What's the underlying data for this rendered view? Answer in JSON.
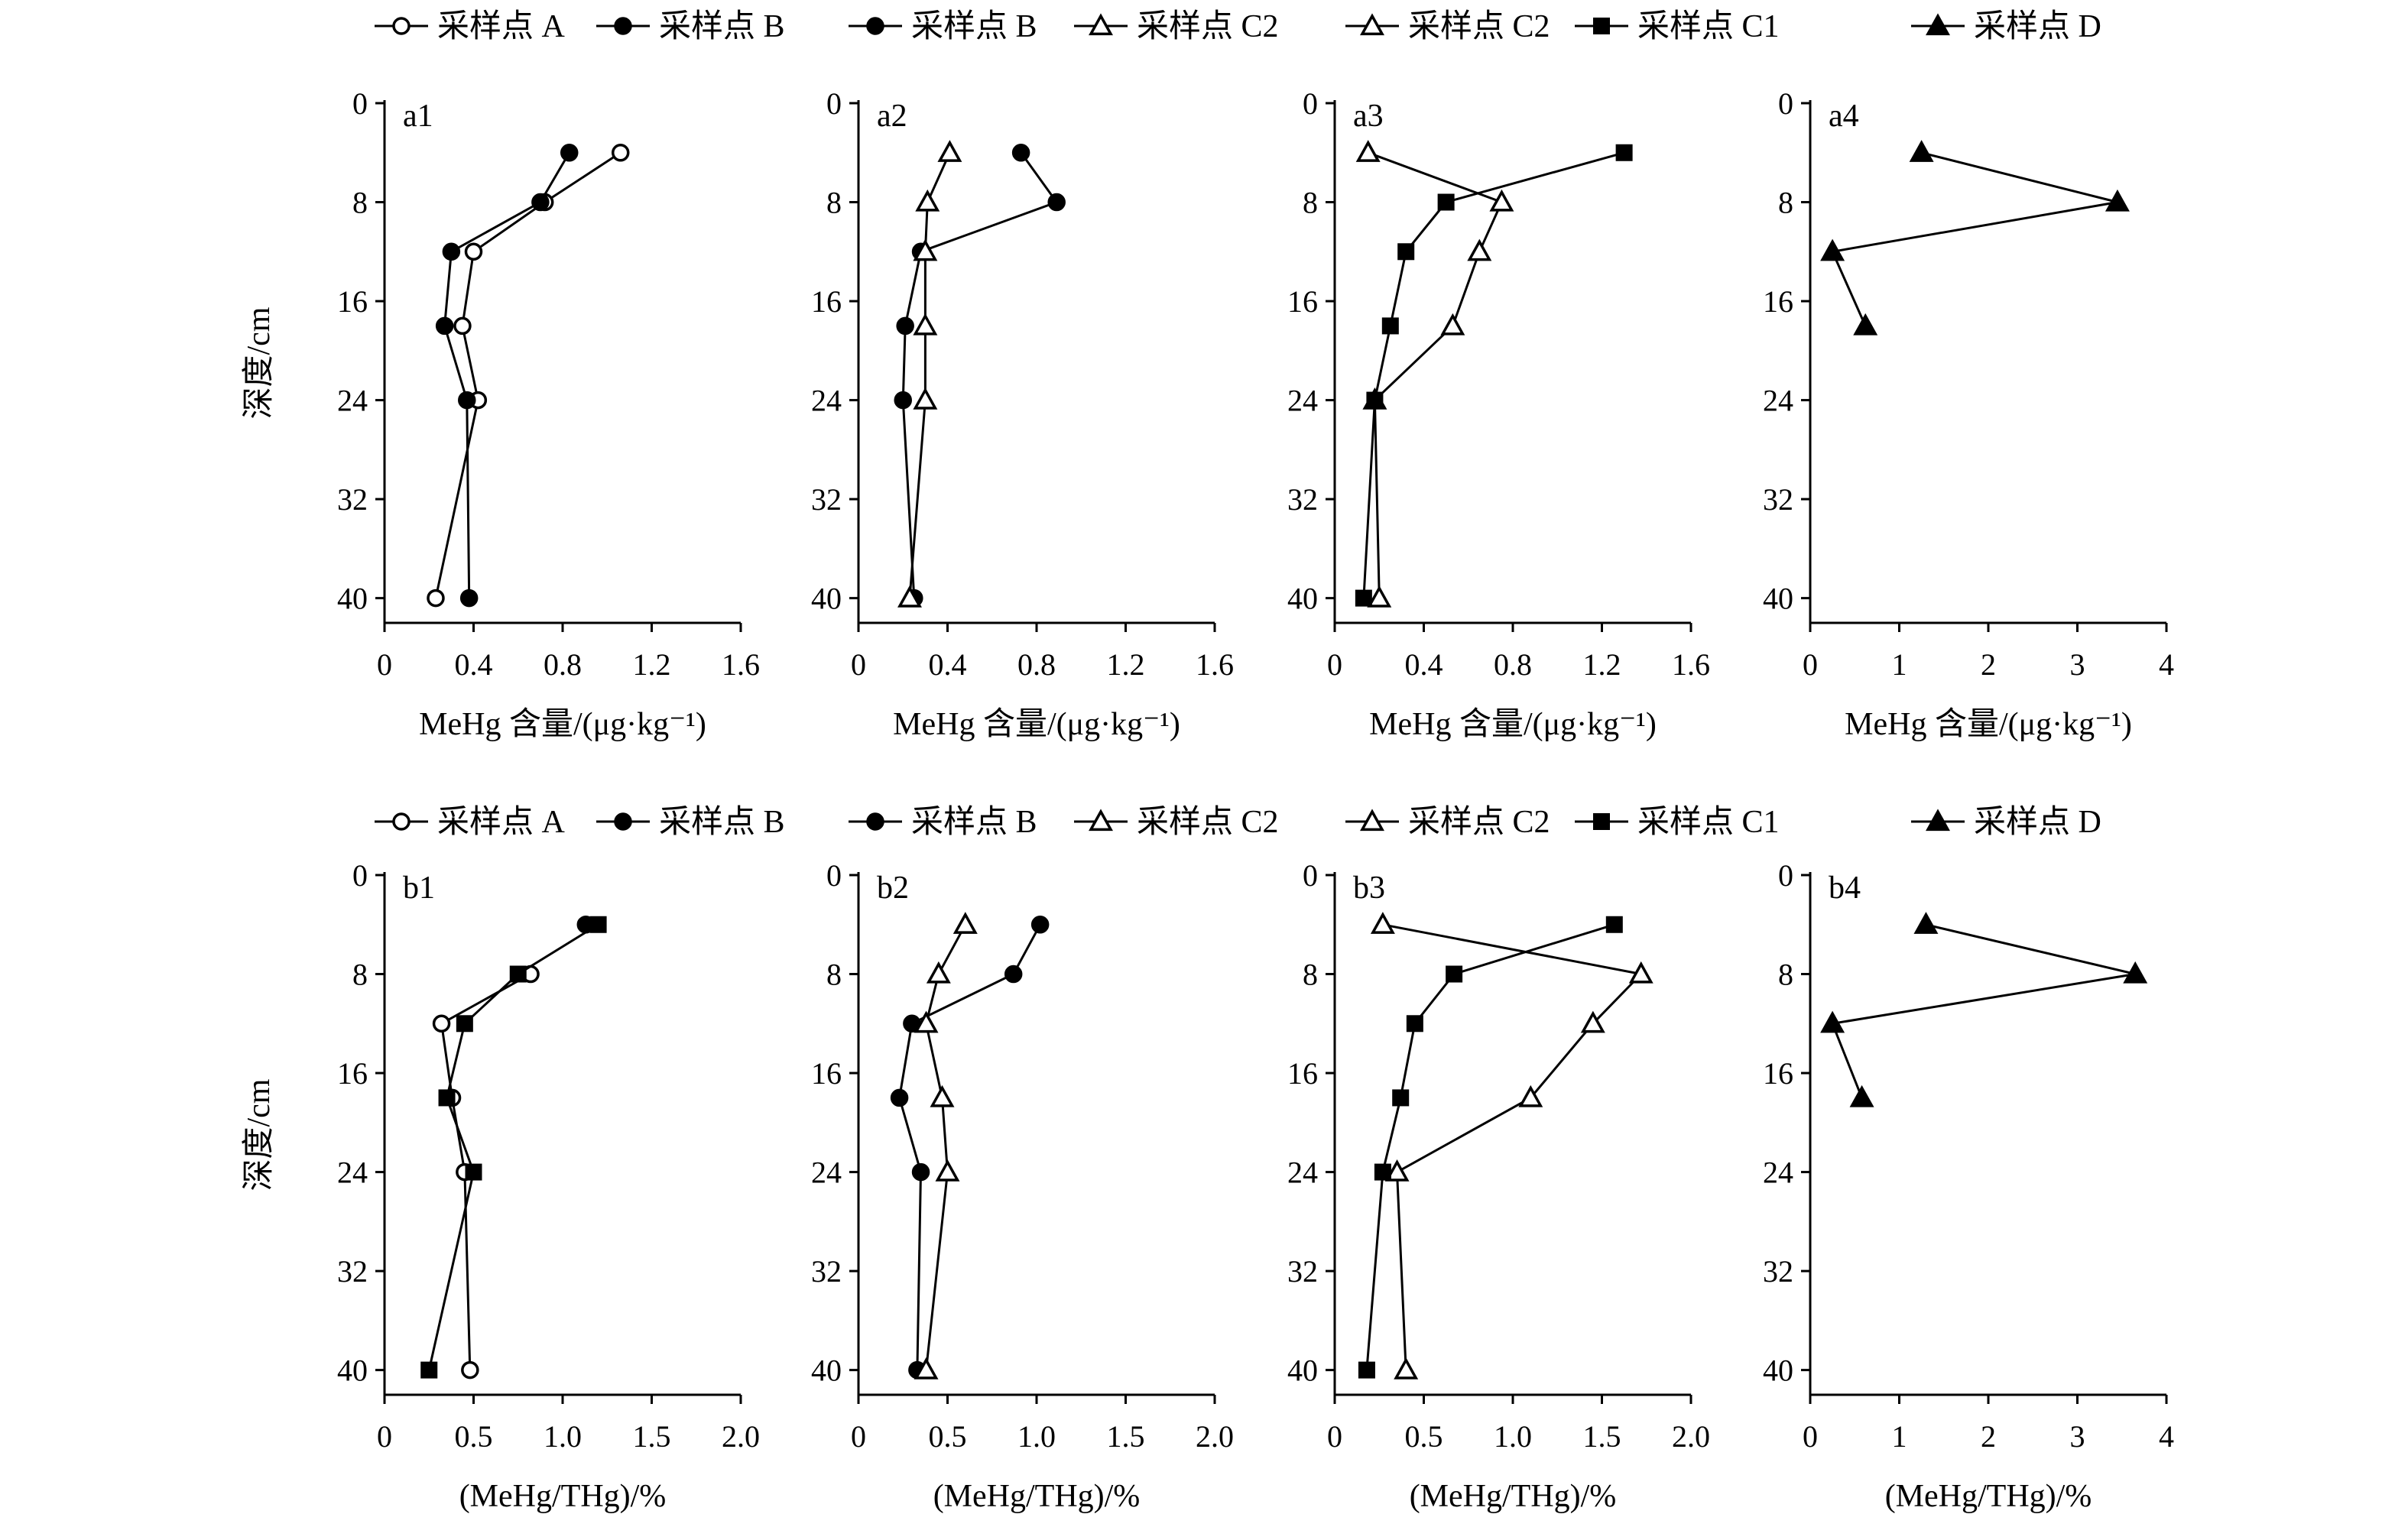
{
  "figure": {
    "ylabel": "深度/cm",
    "y_ticks": [
      0,
      8,
      16,
      24,
      32,
      40
    ]
  },
  "legend": {
    "entries": [
      {
        "label": "采样点 A",
        "marker": "circle-open"
      },
      {
        "label": "采样点 B",
        "marker": "circle-filled"
      },
      {
        "label": "采样点 B",
        "marker": "circle-filled"
      },
      {
        "label": "采样点 C2",
        "marker": "triangle-open"
      },
      {
        "label": "采样点 C2",
        "marker": "triangle-open"
      },
      {
        "label": "采样点 C1",
        "marker": "square-filled"
      },
      {
        "label": "采样点 D",
        "marker": "triangle-filled"
      }
    ]
  },
  "chart_data": [
    {
      "type": "line",
      "panel_label": "a1",
      "xlabel": "MeHg 含量/(μg·kg⁻¹)",
      "xlim": [
        0,
        1.6
      ],
      "x_ticks": [
        "0",
        "0.4",
        "0.8",
        "1.2",
        "1.6"
      ],
      "ylabel": "深度/cm",
      "ylim": [
        40,
        0
      ],
      "y_ticks": [
        0,
        8,
        16,
        24,
        32,
        40
      ],
      "series": [
        {
          "marker": "circle-open",
          "points": [
            {
              "x": 1.06,
              "y": 4
            },
            {
              "x": 0.72,
              "y": 8
            },
            {
              "x": 0.4,
              "y": 12
            },
            {
              "x": 0.35,
              "y": 18
            },
            {
              "x": 0.42,
              "y": 24
            },
            {
              "x": 0.23,
              "y": 40
            }
          ]
        },
        {
          "marker": "circle-filled",
          "points": [
            {
              "x": 0.83,
              "y": 4
            },
            {
              "x": 0.7,
              "y": 8
            },
            {
              "x": 0.3,
              "y": 12
            },
            {
              "x": 0.27,
              "y": 18
            },
            {
              "x": 0.37,
              "y": 24
            },
            {
              "x": 0.38,
              "y": 40
            }
          ]
        }
      ]
    },
    {
      "type": "line",
      "panel_label": "a2",
      "xlabel": "MeHg 含量/(μg·kg⁻¹)",
      "xlim": [
        0,
        1.6
      ],
      "x_ticks": [
        "0",
        "0.4",
        "0.8",
        "1.2",
        "1.6"
      ],
      "ylabel": "深度/cm",
      "ylim": [
        40,
        0
      ],
      "y_ticks": [
        0,
        8,
        16,
        24,
        32,
        40
      ],
      "series": [
        {
          "marker": "circle-filled",
          "points": [
            {
              "x": 0.73,
              "y": 4
            },
            {
              "x": 0.89,
              "y": 8
            },
            {
              "x": 0.28,
              "y": 12
            },
            {
              "x": 0.21,
              "y": 18
            },
            {
              "x": 0.2,
              "y": 24
            },
            {
              "x": 0.25,
              "y": 40
            }
          ]
        },
        {
          "marker": "triangle-open",
          "points": [
            {
              "x": 0.41,
              "y": 4
            },
            {
              "x": 0.31,
              "y": 8
            },
            {
              "x": 0.3,
              "y": 12
            },
            {
              "x": 0.3,
              "y": 18
            },
            {
              "x": 0.3,
              "y": 24
            },
            {
              "x": 0.23,
              "y": 40
            }
          ]
        }
      ]
    },
    {
      "type": "line",
      "panel_label": "a3",
      "xlabel": "MeHg 含量/(μg·kg⁻¹)",
      "xlim": [
        0,
        1.6
      ],
      "x_ticks": [
        "0",
        "0.4",
        "0.8",
        "1.2",
        "1.6"
      ],
      "ylabel": "深度/cm",
      "ylim": [
        40,
        0
      ],
      "y_ticks": [
        0,
        8,
        16,
        24,
        32,
        40
      ],
      "series": [
        {
          "marker": "triangle-open",
          "points": [
            {
              "x": 0.15,
              "y": 4
            },
            {
              "x": 0.75,
              "y": 8
            },
            {
              "x": 0.65,
              "y": 12
            },
            {
              "x": 0.53,
              "y": 18
            },
            {
              "x": 0.18,
              "y": 24
            },
            {
              "x": 0.2,
              "y": 40
            }
          ]
        },
        {
          "marker": "square-filled",
          "points": [
            {
              "x": 1.3,
              "y": 4
            },
            {
              "x": 0.5,
              "y": 8
            },
            {
              "x": 0.32,
              "y": 12
            },
            {
              "x": 0.25,
              "y": 18
            },
            {
              "x": 0.18,
              "y": 24
            },
            {
              "x": 0.13,
              "y": 40
            }
          ]
        }
      ]
    },
    {
      "type": "line",
      "panel_label": "a4",
      "xlabel": "MeHg 含量/(μg·kg⁻¹)",
      "xlim": [
        0,
        4
      ],
      "x_ticks": [
        "0",
        "1",
        "2",
        "3",
        "4"
      ],
      "ylabel": "深度/cm",
      "ylim": [
        40,
        0
      ],
      "y_ticks": [
        0,
        8,
        16,
        24,
        32,
        40
      ],
      "series": [
        {
          "marker": "triangle-filled",
          "points": [
            {
              "x": 1.25,
              "y": 4
            },
            {
              "x": 3.45,
              "y": 8
            },
            {
              "x": 0.25,
              "y": 12
            },
            {
              "x": 0.62,
              "y": 18
            }
          ]
        }
      ]
    },
    {
      "type": "line",
      "panel_label": "b1",
      "xlabel": "(MeHg/THg)/%",
      "xlim": [
        0,
        2.0
      ],
      "x_ticks": [
        "0",
        "0.5",
        "1.0",
        "1.5",
        "2.0"
      ],
      "ylabel": "深度/cm",
      "ylim": [
        40,
        0
      ],
      "y_ticks": [
        0,
        8,
        16,
        24,
        32,
        40
      ],
      "series": [
        {
          "marker": "circle-open",
          "points": [
            {
              "x": 0.82,
              "y": 8
            },
            {
              "x": 0.32,
              "y": 12
            },
            {
              "x": 0.38,
              "y": 18
            },
            {
              "x": 0.45,
              "y": 24
            },
            {
              "x": 0.48,
              "y": 40
            }
          ]
        },
        {
          "marker": "circle-filled",
          "points": [
            {
              "x": 1.13,
              "y": 4
            }
          ]
        },
        {
          "marker": "square-filled",
          "points": [
            {
              "x": 1.2,
              "y": 4
            },
            {
              "x": 0.75,
              "y": 8
            },
            {
              "x": 0.45,
              "y": 12
            },
            {
              "x": 0.35,
              "y": 18
            },
            {
              "x": 0.5,
              "y": 24
            },
            {
              "x": 0.25,
              "y": 40
            }
          ]
        }
      ]
    },
    {
      "type": "line",
      "panel_label": "b2",
      "xlabel": "(MeHg/THg)/%",
      "xlim": [
        0,
        2.0
      ],
      "x_ticks": [
        "0",
        "0.5",
        "1.0",
        "1.5",
        "2.0"
      ],
      "ylabel": "深度/cm",
      "ylim": [
        40,
        0
      ],
      "y_ticks": [
        0,
        8,
        16,
        24,
        32,
        40
      ],
      "series": [
        {
          "marker": "circle-filled",
          "points": [
            {
              "x": 1.02,
              "y": 4
            },
            {
              "x": 0.87,
              "y": 8
            },
            {
              "x": 0.3,
              "y": 12
            },
            {
              "x": 0.23,
              "y": 18
            },
            {
              "x": 0.35,
              "y": 24
            },
            {
              "x": 0.33,
              "y": 40
            }
          ]
        },
        {
          "marker": "triangle-open",
          "points": [
            {
              "x": 0.6,
              "y": 4
            },
            {
              "x": 0.45,
              "y": 8
            },
            {
              "x": 0.38,
              "y": 12
            },
            {
              "x": 0.47,
              "y": 18
            },
            {
              "x": 0.5,
              "y": 24
            },
            {
              "x": 0.38,
              "y": 40
            }
          ]
        }
      ]
    },
    {
      "type": "line",
      "panel_label": "b3",
      "xlabel": "(MeHg/THg)/%",
      "xlim": [
        0,
        2.0
      ],
      "x_ticks": [
        "0",
        "0.5",
        "1.0",
        "1.5",
        "2.0"
      ],
      "ylabel": "深度/cm",
      "ylim": [
        40,
        0
      ],
      "y_ticks": [
        0,
        8,
        16,
        24,
        32,
        40
      ],
      "series": [
        {
          "marker": "triangle-open",
          "points": [
            {
              "x": 0.27,
              "y": 4
            },
            {
              "x": 1.72,
              "y": 8
            },
            {
              "x": 1.45,
              "y": 12
            },
            {
              "x": 1.1,
              "y": 18
            },
            {
              "x": 0.35,
              "y": 24
            },
            {
              "x": 0.4,
              "y": 40
            }
          ]
        },
        {
          "marker": "square-filled",
          "points": [
            {
              "x": 1.57,
              "y": 4
            },
            {
              "x": 0.67,
              "y": 8
            },
            {
              "x": 0.45,
              "y": 12
            },
            {
              "x": 0.37,
              "y": 18
            },
            {
              "x": 0.27,
              "y": 24
            },
            {
              "x": 0.18,
              "y": 40
            }
          ]
        }
      ]
    },
    {
      "type": "line",
      "panel_label": "b4",
      "xlabel": "(MeHg/THg)/%",
      "xlim": [
        0,
        4
      ],
      "x_ticks": [
        "0",
        "1",
        "2",
        "3",
        "4"
      ],
      "ylabel": "深度/cm",
      "ylim": [
        40,
        0
      ],
      "y_ticks": [
        0,
        8,
        16,
        24,
        32,
        40
      ],
      "series": [
        {
          "marker": "triangle-filled",
          "points": [
            {
              "x": 1.3,
              "y": 4
            },
            {
              "x": 3.65,
              "y": 8
            },
            {
              "x": 0.25,
              "y": 12
            },
            {
              "x": 0.58,
              "y": 18
            }
          ]
        }
      ]
    }
  ]
}
